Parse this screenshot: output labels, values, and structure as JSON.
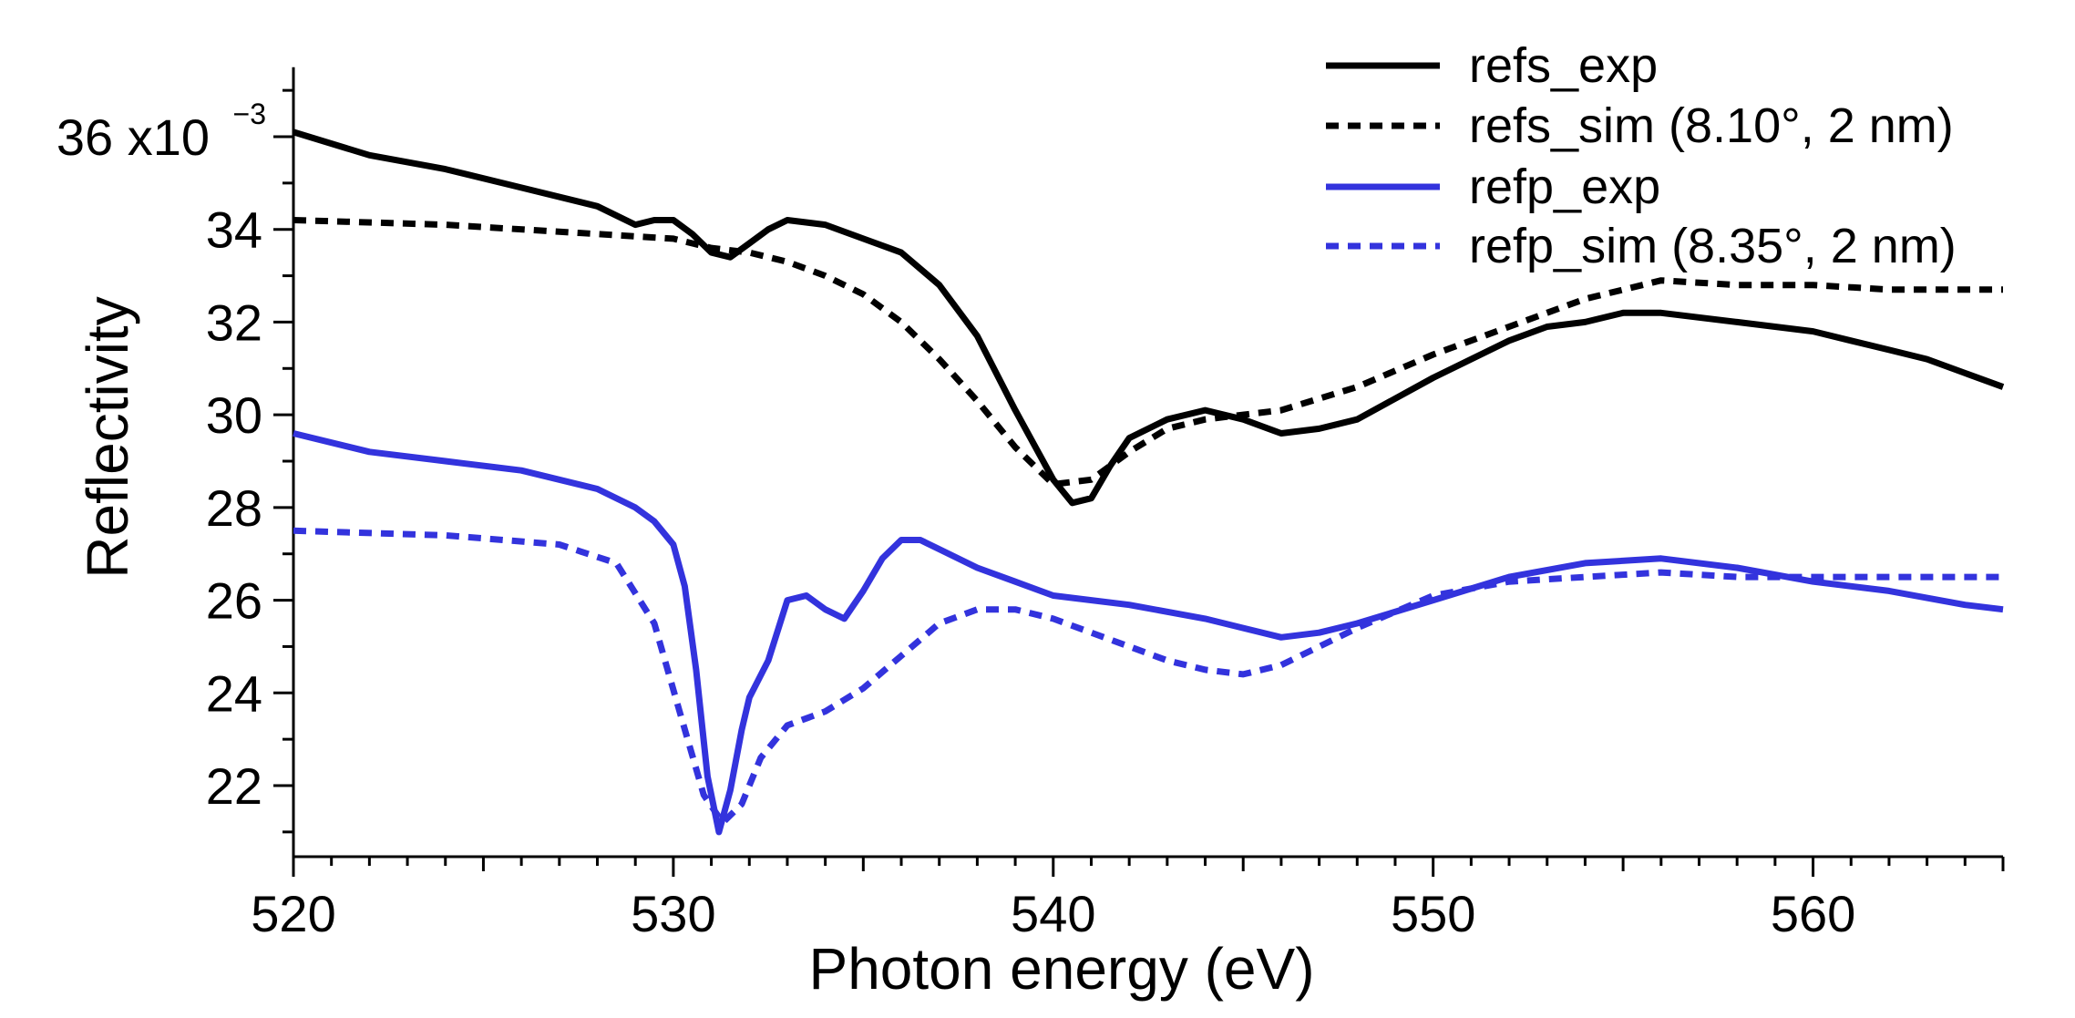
{
  "chart_data": {
    "type": "line",
    "xlabel": "Photon energy (eV)",
    "ylabel": "Reflectivity",
    "xlim": [
      520,
      565
    ],
    "ylim": [
      20.8,
      37.5
    ],
    "x_ticks": [
      520,
      530,
      540,
      550,
      560
    ],
    "x_minor_step": 1,
    "y_ticks": [
      22,
      24,
      26,
      28,
      30,
      32,
      34,
      36
    ],
    "y_tick_labels": [
      "22",
      "24",
      "26",
      "28",
      "30",
      "32",
      "34",
      "36 x10"
    ],
    "y_multiplier_exponent": "−3",
    "grid": false,
    "legend_position": "top-right",
    "series": [
      {
        "name": "refs_exp",
        "color": "#000000",
        "dash": "solid",
        "x": [
          520,
          522,
          524,
          526,
          528,
          529,
          529.5,
          530,
          530.5,
          531,
          531.5,
          532,
          532.5,
          533,
          534,
          535,
          536,
          537,
          538,
          539,
          540,
          540.5,
          541,
          541.5,
          542,
          543,
          544,
          545,
          546,
          547,
          548,
          550,
          552,
          553,
          554,
          555,
          556,
          558,
          560,
          561,
          562,
          563,
          564,
          565
        ],
        "y": [
          36.1,
          35.6,
          35.3,
          34.9,
          34.5,
          34.1,
          34.2,
          34.2,
          33.9,
          33.5,
          33.4,
          33.7,
          34.0,
          34.2,
          34.1,
          33.8,
          33.5,
          32.8,
          31.7,
          30.1,
          28.6,
          28.1,
          28.2,
          28.9,
          29.5,
          29.9,
          30.1,
          29.9,
          29.6,
          29.7,
          29.9,
          30.8,
          31.6,
          31.9,
          32.0,
          32.2,
          32.2,
          32.0,
          31.8,
          31.6,
          31.4,
          31.2,
          30.9,
          30.6
        ]
      },
      {
        "name": "refs_sim (8.10°, 2 nm)",
        "color": "#000000",
        "dash": "dotted",
        "x": [
          520,
          524,
          528,
          530,
          531,
          532,
          533,
          534,
          535,
          536,
          537,
          538,
          539,
          540,
          541,
          542,
          543,
          544,
          545,
          546,
          548,
          550,
          552,
          554,
          556,
          558,
          560,
          562,
          565
        ],
        "y": [
          34.2,
          34.1,
          33.9,
          33.8,
          33.6,
          33.5,
          33.3,
          33.0,
          32.6,
          32.0,
          31.2,
          30.3,
          29.3,
          28.5,
          28.6,
          29.2,
          29.7,
          29.9,
          30.0,
          30.1,
          30.6,
          31.3,
          31.9,
          32.5,
          32.9,
          32.8,
          32.8,
          32.7,
          32.7
        ]
      },
      {
        "name": "refp_exp",
        "color": "#3333dd",
        "dash": "solid",
        "x": [
          520,
          522,
          524,
          526,
          528,
          529,
          529.5,
          530,
          530.3,
          530.6,
          530.9,
          531.2,
          531.5,
          531.8,
          532,
          532.5,
          533,
          533.5,
          534,
          534.5,
          535,
          535.5,
          536,
          536.5,
          537,
          538,
          539,
          540,
          542,
          544,
          545,
          546,
          547,
          548,
          550,
          552,
          554,
          556,
          558,
          560,
          562,
          564,
          565
        ],
        "y": [
          29.6,
          29.2,
          29.0,
          28.8,
          28.4,
          28.0,
          27.7,
          27.2,
          26.3,
          24.5,
          22.2,
          21.0,
          21.9,
          23.2,
          23.9,
          24.7,
          26.0,
          26.1,
          25.8,
          25.6,
          26.2,
          26.9,
          27.3,
          27.3,
          27.1,
          26.7,
          26.4,
          26.1,
          25.9,
          25.6,
          25.4,
          25.2,
          25.3,
          25.5,
          26.0,
          26.5,
          26.8,
          26.9,
          26.7,
          26.4,
          26.2,
          25.9,
          25.8
        ]
      },
      {
        "name": "refp_sim (8.35°, 2 nm)",
        "color": "#3333dd",
        "dash": "dotted",
        "x": [
          520,
          524,
          527,
          528.5,
          529.5,
          530.2,
          530.8,
          531.3,
          531.8,
          532.3,
          533,
          534,
          535,
          536,
          537,
          538,
          539,
          540,
          541,
          542,
          543,
          544,
          545,
          546,
          548,
          550,
          552,
          554,
          556,
          558,
          560,
          565
        ],
        "y": [
          27.5,
          27.4,
          27.2,
          26.8,
          25.5,
          23.5,
          21.8,
          21.2,
          21.6,
          22.6,
          23.3,
          23.6,
          24.1,
          24.8,
          25.5,
          25.8,
          25.8,
          25.6,
          25.3,
          25.0,
          24.7,
          24.5,
          24.4,
          24.6,
          25.4,
          26.1,
          26.4,
          26.5,
          26.6,
          26.5,
          26.5,
          26.5
        ]
      }
    ]
  }
}
